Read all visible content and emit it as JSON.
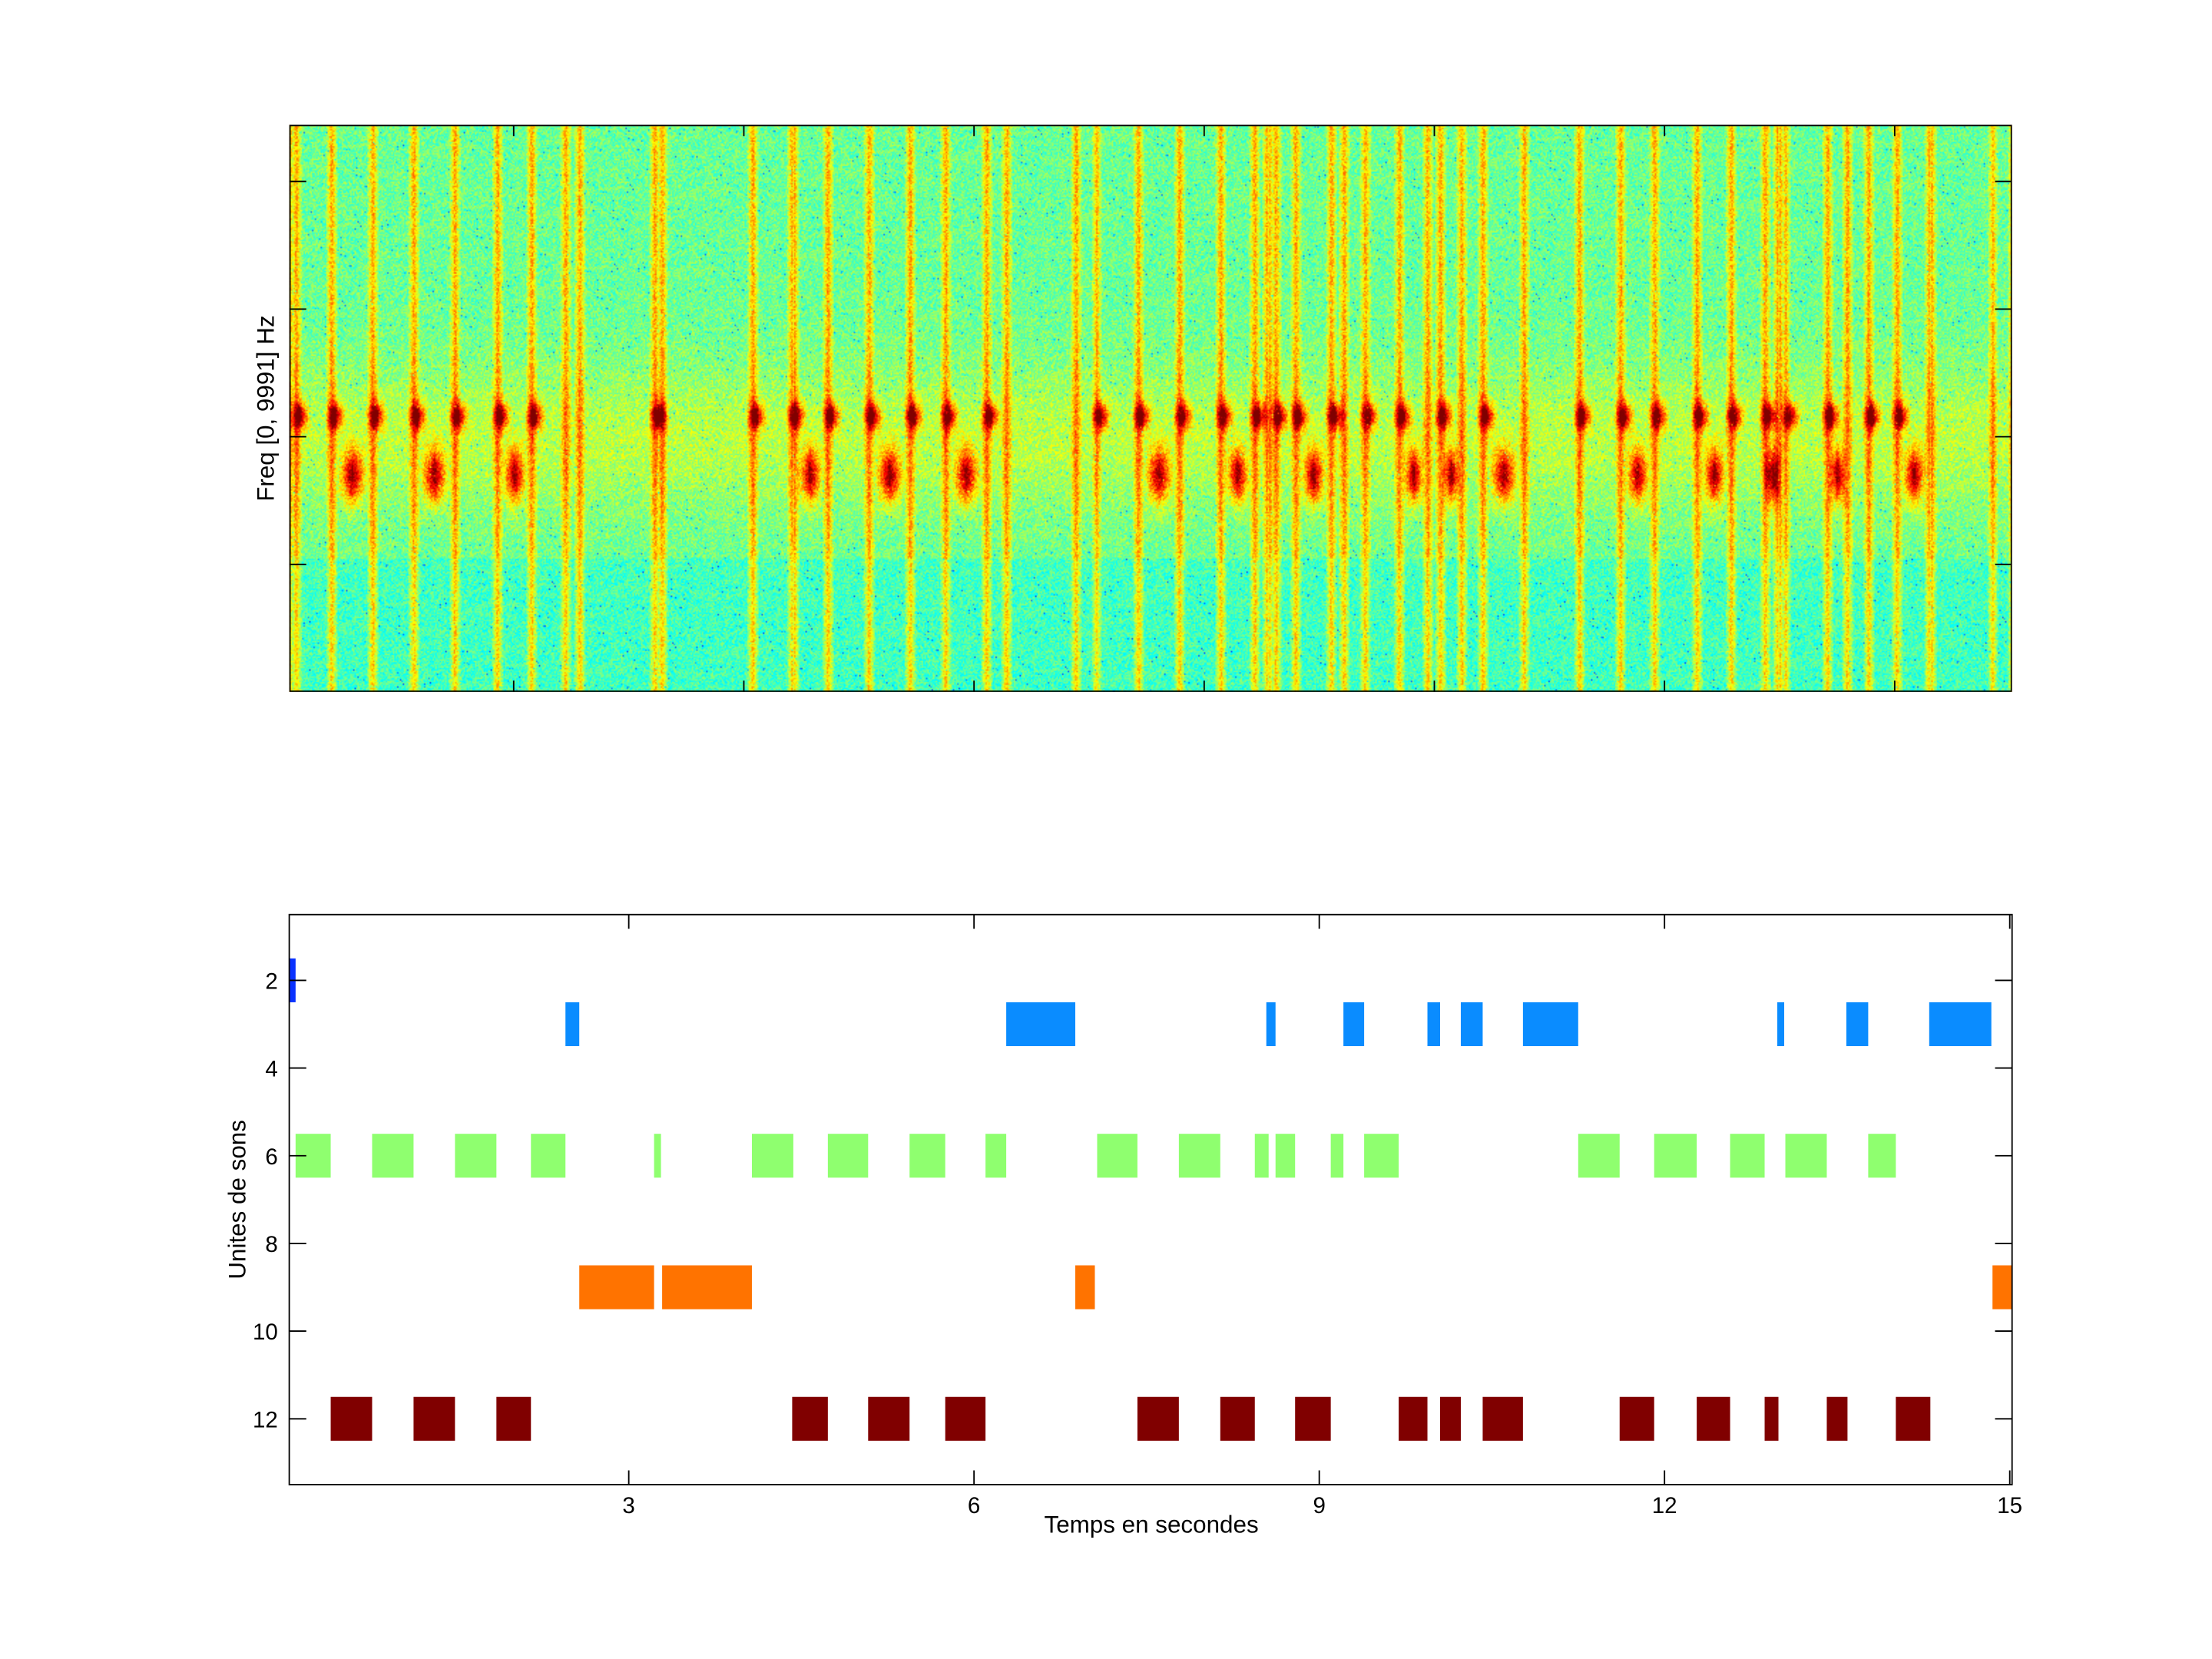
{
  "chart_data": [
    {
      "type": "heatmap",
      "title": "",
      "ylabel": "Freq [0, 9991] Hz",
      "xlabel": "",
      "colormap": "jet",
      "xlim": [
        0.05,
        15.02
      ],
      "xticks": [
        2,
        4,
        6,
        8,
        10,
        12,
        14
      ],
      "yticks_count": 4
    },
    {
      "type": "bar",
      "subtype": "horizontal-segments",
      "title": "",
      "xlabel": "Temps en secondes",
      "ylabel": "Unites de sons",
      "xlim": [
        0.05,
        15.02
      ],
      "ylim": [
        0.5,
        13.5
      ],
      "y_reversed": true,
      "xticks": [
        3,
        6,
        9,
        12,
        15
      ],
      "yticks": [
        2,
        4,
        6,
        8,
        10,
        12
      ],
      "series": [
        {
          "unit": 2,
          "color": "#0a32ff",
          "segments": [
            [
              0.05,
              0.105
            ]
          ]
        },
        {
          "unit": 3,
          "color": "#0a8cff",
          "segments": [
            [
              2.45,
              2.57
            ],
            [
              6.28,
              6.88
            ],
            [
              8.54,
              8.62
            ],
            [
              9.21,
              9.39
            ],
            [
              9.94,
              10.05
            ],
            [
              10.23,
              10.42
            ],
            [
              10.77,
              11.25
            ],
            [
              12.98,
              13.04
            ],
            [
              13.58,
              13.77
            ],
            [
              14.3,
              14.84
            ]
          ]
        },
        {
          "unit": 6,
          "color": "#8fff6f",
          "segments": [
            [
              0.105,
              0.41
            ],
            [
              0.77,
              1.13
            ],
            [
              1.49,
              1.85
            ],
            [
              2.15,
              2.45
            ],
            [
              3.22,
              3.28
            ],
            [
              4.07,
              4.43
            ],
            [
              4.73,
              5.08
            ],
            [
              5.44,
              5.75
            ],
            [
              6.1,
              6.28
            ],
            [
              7.07,
              7.42
            ],
            [
              7.78,
              8.14
            ],
            [
              8.44,
              8.56
            ],
            [
              8.62,
              8.79
            ],
            [
              9.1,
              9.21
            ],
            [
              9.39,
              9.69
            ],
            [
              11.25,
              11.61
            ],
            [
              11.91,
              12.28
            ],
            [
              12.57,
              12.87
            ],
            [
              13.05,
              13.41
            ],
            [
              13.77,
              14.01
            ]
          ]
        },
        {
          "unit": 9,
          "color": "#ff7300",
          "segments": [
            [
              2.57,
              3.22
            ],
            [
              3.29,
              4.07
            ],
            [
              6.88,
              7.05
            ],
            [
              14.85,
              15.02
            ]
          ]
        },
        {
          "unit": 12,
          "color": "#800000",
          "segments": [
            [
              0.41,
              0.77
            ],
            [
              1.13,
              1.49
            ],
            [
              1.85,
              2.15
            ],
            [
              4.42,
              4.73
            ],
            [
              5.08,
              5.44
            ],
            [
              5.75,
              6.1
            ],
            [
              7.42,
              7.78
            ],
            [
              8.14,
              8.44
            ],
            [
              8.79,
              9.1
            ],
            [
              9.69,
              9.94
            ],
            [
              10.05,
              10.23
            ],
            [
              10.42,
              10.77
            ],
            [
              11.61,
              11.91
            ],
            [
              12.28,
              12.57
            ],
            [
              12.87,
              12.99
            ],
            [
              13.41,
              13.59
            ],
            [
              14.01,
              14.31
            ]
          ]
        }
      ]
    }
  ]
}
